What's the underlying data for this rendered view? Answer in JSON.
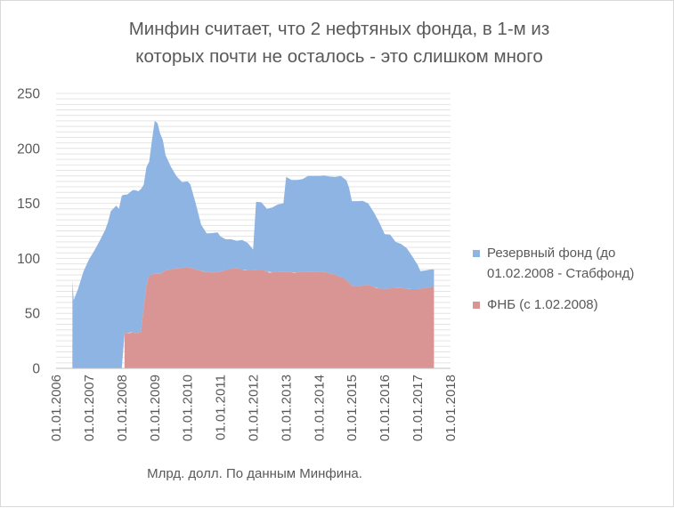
{
  "chart_data": {
    "type": "area",
    "title_lines": [
      "Минфин считает, что 2 нефтяных фонда, в 1-м из",
      "которых почти не осталось - это слишком много"
    ],
    "xlabel": "Млрд. долл. По данным Минфина.",
    "ylabel": "",
    "ylim": [
      0,
      250
    ],
    "y_ticks": [
      0,
      50,
      100,
      150,
      200,
      250
    ],
    "x_ticks": [
      "01.01.2006",
      "01.01.2007",
      "01.01.2008",
      "01.01.2009",
      "01.01.2010",
      "01.01.2011",
      "01.01.2012",
      "01.01.2013",
      "01.01.2014",
      "01.01.2015",
      "01.01.2016",
      "01.01.2017",
      "01.01.2018"
    ],
    "grid": "horizontal",
    "stacked": true,
    "legend_position": "right",
    "series": [
      {
        "name": "ФНБ (с 1.02.2008)",
        "color": "#d99594",
        "points": [
          [
            "2008-02-01",
            32
          ],
          [
            "2008-03-01",
            32
          ],
          [
            "2008-04-01",
            32
          ],
          [
            "2008-05-01",
            33
          ],
          [
            "2008-06-01",
            32
          ],
          [
            "2008-07-01",
            32
          ],
          [
            "2008-08-01",
            33
          ],
          [
            "2008-09-01",
            55
          ],
          [
            "2008-10-01",
            75
          ],
          [
            "2008-11-01",
            85
          ],
          [
            "2008-12-01",
            85
          ],
          [
            "2009-01-01",
            86
          ],
          [
            "2009-03-01",
            86
          ],
          [
            "2009-05-01",
            89
          ],
          [
            "2009-07-01",
            90
          ],
          [
            "2009-10-01",
            91
          ],
          [
            "2010-01-01",
            92
          ],
          [
            "2010-04-01",
            90
          ],
          [
            "2010-07-01",
            88
          ],
          [
            "2010-10-01",
            87
          ],
          [
            "2011-01-01",
            88
          ],
          [
            "2011-04-01",
            90
          ],
          [
            "2011-07-01",
            91
          ],
          [
            "2011-10-01",
            89
          ],
          [
            "2012-01-01",
            89
          ],
          [
            "2012-04-01",
            90
          ],
          [
            "2012-07-01",
            87
          ],
          [
            "2012-10-01",
            88
          ],
          [
            "2013-01-01",
            88
          ],
          [
            "2013-04-01",
            87
          ],
          [
            "2013-07-01",
            88
          ],
          [
            "2013-10-01",
            88
          ],
          [
            "2014-01-01",
            88
          ],
          [
            "2014-04-01",
            87
          ],
          [
            "2014-07-01",
            85
          ],
          [
            "2014-10-01",
            82
          ],
          [
            "2014-12-01",
            78
          ],
          [
            "2015-01-01",
            75
          ],
          [
            "2015-04-01",
            75
          ],
          [
            "2015-07-01",
            76
          ],
          [
            "2015-10-01",
            73
          ],
          [
            "2016-01-01",
            72
          ],
          [
            "2016-04-01",
            73
          ],
          [
            "2016-07-01",
            73
          ],
          [
            "2016-10-01",
            72
          ],
          [
            "2017-01-01",
            72
          ],
          [
            "2017-04-01",
            73
          ],
          [
            "2017-06-01",
            74
          ],
          [
            "2017-07-01",
            74
          ]
        ]
      },
      {
        "name": "Резервный фонд (до 01.02.2008 - Стабфонд)",
        "color": "#8eb4e3",
        "points": [
          [
            "2006-07-01",
            0
          ],
          [
            "2006-07-02",
            80
          ],
          [
            "2006-07-15",
            62
          ],
          [
            "2006-09-01",
            72
          ],
          [
            "2006-11-01",
            88
          ],
          [
            "2007-01-01",
            99
          ],
          [
            "2007-03-01",
            107
          ],
          [
            "2007-05-01",
            116
          ],
          [
            "2007-07-01",
            126
          ],
          [
            "2007-08-01",
            133
          ],
          [
            "2007-09-01",
            143
          ],
          [
            "2007-11-01",
            148
          ],
          [
            "2007-12-01",
            145
          ],
          [
            "2008-01-01",
            157
          ],
          [
            "2008-02-01",
            126
          ],
          [
            "2008-03-01",
            126
          ],
          [
            "2008-05-01",
            129
          ],
          [
            "2008-06-01",
            130
          ],
          [
            "2008-07-01",
            129
          ],
          [
            "2008-08-01",
            130
          ],
          [
            "2008-09-01",
            112
          ],
          [
            "2008-10-01",
            108
          ],
          [
            "2008-11-01",
            103
          ],
          [
            "2008-12-01",
            122
          ],
          [
            "2009-01-01",
            139
          ],
          [
            "2009-02-01",
            137
          ],
          [
            "2009-03-01",
            128
          ],
          [
            "2009-04-01",
            120
          ],
          [
            "2009-05-01",
            105
          ],
          [
            "2009-07-01",
            93
          ],
          [
            "2009-09-01",
            84
          ],
          [
            "2009-11-01",
            78
          ],
          [
            "2010-01-01",
            78
          ],
          [
            "2010-02-01",
            76
          ],
          [
            "2010-04-01",
            60
          ],
          [
            "2010-06-01",
            42
          ],
          [
            "2010-08-01",
            35
          ],
          [
            "2010-10-01",
            36
          ],
          [
            "2010-12-01",
            36
          ],
          [
            "2011-01-01",
            32
          ],
          [
            "2011-03-01",
            28
          ],
          [
            "2011-05-01",
            27
          ],
          [
            "2011-07-01",
            25
          ],
          [
            "2011-09-01",
            27
          ],
          [
            "2011-11-01",
            25
          ],
          [
            "2011-12-31",
            19
          ],
          [
            "2012-02-01",
            62
          ],
          [
            "2012-04-01",
            61
          ],
          [
            "2012-06-01",
            57
          ],
          [
            "2012-08-01",
            59
          ],
          [
            "2012-10-01",
            61
          ],
          [
            "2012-12-01",
            62
          ],
          [
            "2013-01-01",
            86
          ],
          [
            "2013-03-01",
            84
          ],
          [
            "2013-05-01",
            84
          ],
          [
            "2013-07-01",
            84
          ],
          [
            "2013-09-01",
            87
          ],
          [
            "2013-11-01",
            87
          ],
          [
            "2014-01-01",
            87
          ],
          [
            "2014-03-01",
            88
          ],
          [
            "2014-05-01",
            88
          ],
          [
            "2014-07-01",
            89
          ],
          [
            "2014-09-01",
            92
          ],
          [
            "2014-11-01",
            91
          ],
          [
            "2014-12-01",
            86
          ],
          [
            "2015-01-01",
            77
          ],
          [
            "2015-03-01",
            77
          ],
          [
            "2015-05-01",
            77
          ],
          [
            "2015-07-01",
            74
          ],
          [
            "2015-09-01",
            68
          ],
          [
            "2015-11-01",
            60
          ],
          [
            "2016-01-01",
            50
          ],
          [
            "2016-03-01",
            49
          ],
          [
            "2016-05-01",
            42
          ],
          [
            "2016-07-01",
            40
          ],
          [
            "2016-09-01",
            37
          ],
          [
            "2016-11-01",
            30
          ],
          [
            "2016-12-01",
            26
          ],
          [
            "2017-01-01",
            22
          ],
          [
            "2017-02-01",
            16
          ],
          [
            "2017-04-01",
            16
          ],
          [
            "2017-06-01",
            16
          ],
          [
            "2017-07-01",
            16
          ]
        ]
      }
    ]
  }
}
